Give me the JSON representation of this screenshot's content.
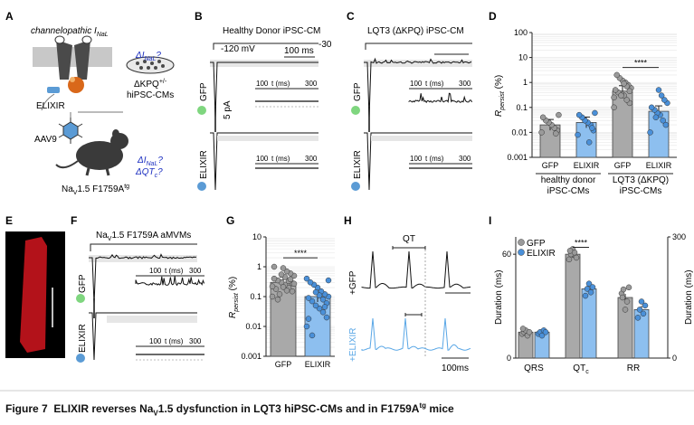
{
  "panel_letters": [
    "A",
    "B",
    "C",
    "D",
    "E",
    "F",
    "G",
    "H",
    "I"
  ],
  "panelA": {
    "title": "channelopathic I",
    "title_sub": "NaL",
    "elixir": "ELIXIR",
    "aav": "AAV9",
    "mouse_label": "Na",
    "mouse_label_sub": "V",
    "mouse_label_rest": "1.5 F1759A",
    "mouse_label_sup": "tg",
    "q1": "ΔI",
    "q1_sub": "NaL",
    "q1_end": "?",
    "dish_line1": "ΔKPQ",
    "dish_line1_sup": "+/-",
    "dish_line2": "hiPSC-CMs",
    "q2a": "ΔI",
    "q2a_sub": "NaL",
    "q2a_end": "?",
    "q2b": "ΔQT",
    "q2b_sub": "c",
    "q2b_end": "?"
  },
  "panelB": {
    "title": "Healthy Donor iPSC-CM",
    "v_hold": "-120 mV",
    "v_step": "-30",
    "time_scale": "100 ms",
    "amp_scale": "5 pA",
    "row1": "GFP",
    "row2": "ELIXIR",
    "inset_axis": "t (ms)",
    "inset_ticks": [
      "100",
      "300"
    ]
  },
  "panelC": {
    "title": "LQT3 (ΔKPQ) iPSC-CM",
    "row1": "GFP",
    "row2": "ELIXIR",
    "inset_axis": "t (ms)",
    "inset_ticks": [
      "100",
      "300"
    ]
  },
  "panelE": {
    "description_color": "#b3121a"
  },
  "panelF": {
    "title": "Na",
    "title_sub": "V",
    "title_rest": "1.5 F1759A aMVMs",
    "row1": "GFP",
    "row2": "ELIXIR",
    "inset_axis": "t (ms)",
    "inset_ticks": [
      "100",
      "300"
    ]
  },
  "panelH": {
    "qt_label": "QT",
    "row1": "+GFP",
    "row2": "+ELIXIR",
    "scale": "100ms"
  },
  "colors": {
    "gfp": "#a9a9a9",
    "elixir": "#8dbfef",
    "gfp_dot": "#9a9a9a",
    "elixir_dot": "#4a90d9",
    "ecg_blue": "#5aa7e6"
  },
  "chart_data": [
    {
      "panel": "D",
      "type": "bar",
      "title": "",
      "ylabel": "R_persist (%)",
      "yscale": "log",
      "ylim": [
        0.001,
        100
      ],
      "yticks": [
        "0.001",
        "0.01",
        "0.1",
        "1",
        "10",
        "100"
      ],
      "categories": [
        "GFP",
        "ELIXIR",
        "GFP",
        "ELIXIR"
      ],
      "groups": [
        "healthy donor iPSC-CMs",
        "LQT3 (ΔKPQ) iPSC-CMs"
      ],
      "values": [
        0.02,
        0.025,
        0.45,
        0.07
      ],
      "points": [
        [
          0.01,
          0.012,
          0.015,
          0.02,
          0.025,
          0.03,
          0.04,
          0.05,
          0.009
        ],
        [
          0.008,
          0.012,
          0.02,
          0.025,
          0.03,
          0.04,
          0.05,
          0.06,
          0.015,
          0.004
        ],
        [
          0.1,
          0.15,
          0.2,
          0.3,
          0.35,
          0.4,
          0.5,
          0.6,
          0.8,
          1,
          1.2,
          1.5,
          2,
          0.25,
          0.45,
          0.7,
          0.9,
          0.3
        ],
        [
          0.01,
          0.02,
          0.03,
          0.05,
          0.06,
          0.08,
          0.1,
          0.15,
          0.2,
          0.3,
          0.5,
          0.04
        ]
      ],
      "significance": "****"
    },
    {
      "panel": "G",
      "type": "bar",
      "ylabel": "R_persist (%)",
      "yscale": "log",
      "ylim": [
        0.001,
        10
      ],
      "yticks": [
        "0.001",
        "0.01",
        "0.1",
        "1",
        "10"
      ],
      "categories": [
        "GFP",
        "ELIXIR"
      ],
      "values": [
        0.3,
        0.1
      ],
      "points": [
        [
          0.1,
          0.15,
          0.2,
          0.25,
          0.3,
          0.35,
          0.4,
          0.5,
          0.6,
          0.7,
          0.9,
          0.12,
          0.18,
          0.22,
          0.28,
          0.33,
          0.45,
          0.55,
          0.08,
          1.0,
          0.27,
          0.38,
          0.16,
          0.21
        ],
        [
          0.01,
          0.02,
          0.03,
          0.04,
          0.05,
          0.07,
          0.09,
          0.1,
          0.12,
          0.15,
          0.2,
          0.25,
          0.3,
          0.4,
          0.06,
          0.08,
          0.11,
          0.14,
          0.005,
          0.018,
          0.35,
          0.045
        ]
      ],
      "significance": "****"
    },
    {
      "panel": "I",
      "type": "bar",
      "ylabel_left": "Duration (ms)",
      "ylabel_right": "Duration (ms)",
      "ylim_left": [
        0,
        70
      ],
      "yticks_left": [
        "0",
        "60"
      ],
      "ylim_right": [
        0,
        300
      ],
      "yticks_right": [
        "0",
        "300"
      ],
      "categories": [
        "QRS",
        "QTc",
        "RR"
      ],
      "legend": [
        "GFP",
        "ELIXIR"
      ],
      "series": [
        {
          "name": "GFP",
          "values": [
            15,
            60,
            150
          ]
        },
        {
          "name": "ELIXIR",
          "values": [
            15,
            40,
            120
          ]
        }
      ],
      "points": {
        "GFP": [
          [
            14,
            15,
            16,
            13,
            15,
            17
          ],
          [
            57,
            60,
            63,
            61,
            58,
            62
          ],
          [
            160,
            170,
            120,
            140,
            175,
            150
          ]
        ],
        "ELIXIR": [
          [
            14,
            15,
            13,
            16,
            15
          ],
          [
            36,
            40,
            43,
            38,
            41
          ],
          [
            100,
            120,
            140,
            110,
            130
          ]
        ]
      },
      "significance": "****"
    }
  ],
  "caption": {
    "figure": "Figure 7",
    "text_a": "ELIXIR reverses Na",
    "text_sub": "V",
    "text_b": "1.5 dysfunction in LQT3 hiPSC-CMs and in F1759A",
    "text_sup": "tg",
    "text_c": " mice"
  }
}
